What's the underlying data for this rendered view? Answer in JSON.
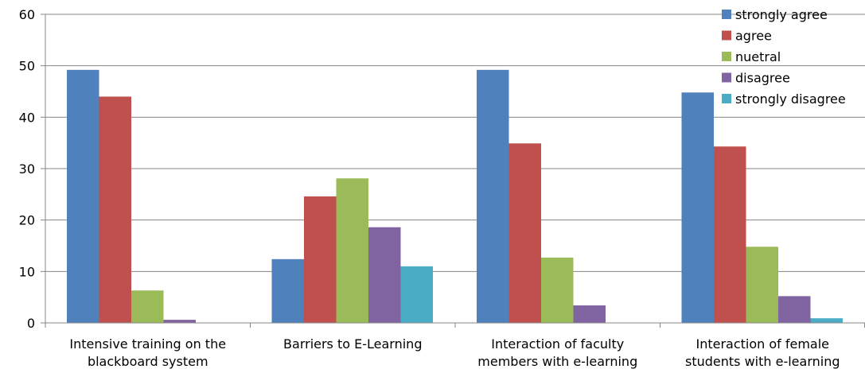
{
  "chart_data": {
    "type": "bar",
    "categories": [
      [
        "Intensive training on the",
        "blackboard system"
      ],
      [
        "Barriers to E-Learning"
      ],
      [
        "Interaction of faculty",
        "members with e-learning"
      ],
      [
        "Interaction of female",
        "students  with  e-learning"
      ]
    ],
    "series": [
      {
        "name": "strongly agree",
        "color": "#4F81BD",
        "values": [
          49.2,
          12.4,
          49.2,
          44.8
        ]
      },
      {
        "name": "agree",
        "color": "#C0504D",
        "values": [
          44.0,
          24.6,
          34.9,
          34.3
        ]
      },
      {
        "name": "nuetral",
        "color": "#9BBB59",
        "values": [
          6.3,
          28.1,
          12.7,
          14.8
        ]
      },
      {
        "name": "disagree",
        "color": "#8064A2",
        "values": [
          0.6,
          18.6,
          3.4,
          5.2
        ]
      },
      {
        "name": "strongly disagree",
        "color": "#4BACC6",
        "values": [
          0,
          11.0,
          0,
          0.9
        ]
      }
    ],
    "ylim": [
      0,
      60
    ],
    "yticks": [
      0,
      10,
      20,
      30,
      40,
      50,
      60
    ],
    "grid": true,
    "legend": "top-right"
  }
}
